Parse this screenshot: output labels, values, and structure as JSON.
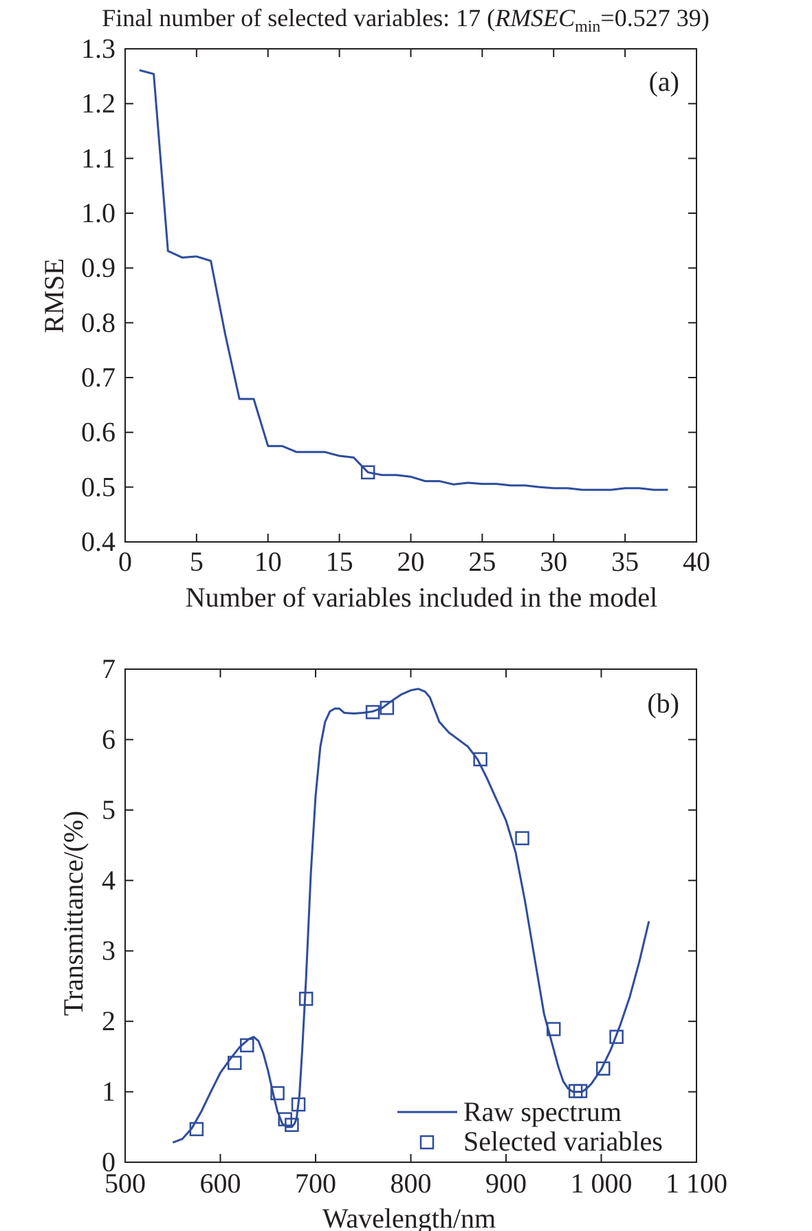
{
  "figure": {
    "title_prefix": "Final number of selected variables: 17 (",
    "title_symbol": "RMSEC",
    "title_subscript": "min",
    "title_suffix": "=0.527 39)"
  },
  "colors": {
    "series": "#2e4d9c",
    "axis": "#231f20",
    "text": "#231f20"
  },
  "chart_data": [
    {
      "type": "line",
      "panel_label": "(a)",
      "xlabel": "Number of variables included in the model",
      "ylabel": "RMSE",
      "xlim": [
        0,
        40
      ],
      "ylim": [
        0.4,
        1.3
      ],
      "xticks": [
        0,
        5,
        10,
        15,
        20,
        25,
        30,
        35,
        40
      ],
      "xtick_labels": [
        "0",
        "5",
        "10",
        "15",
        "20",
        "25",
        "30",
        "35",
        "40"
      ],
      "yticks": [
        0.4,
        0.5,
        0.6,
        0.7,
        0.8,
        0.9,
        1.0,
        1.1,
        1.2,
        1.3
      ],
      "ytick_labels": [
        "0.4",
        "0.5",
        "0.6",
        "0.7",
        "0.8",
        "0.9",
        "1.0",
        "1.1",
        "1.2",
        "1.3"
      ],
      "series": [
        {
          "name": "RMSE",
          "x": [
            1,
            2,
            3,
            4,
            5,
            6,
            7,
            8,
            9,
            10,
            11,
            12,
            13,
            14,
            15,
            16,
            17,
            18,
            19,
            20,
            21,
            22,
            23,
            24,
            25,
            26,
            27,
            28,
            29,
            30,
            31,
            32,
            33,
            34,
            35,
            36,
            37,
            38
          ],
          "y": [
            1.261,
            1.254,
            0.931,
            0.919,
            0.921,
            0.913,
            0.78,
            0.661,
            0.661,
            0.575,
            0.575,
            0.564,
            0.564,
            0.564,
            0.557,
            0.554,
            0.527,
            0.522,
            0.522,
            0.519,
            0.511,
            0.511,
            0.505,
            0.508,
            0.506,
            0.506,
            0.503,
            0.503,
            0.5,
            0.498,
            0.498,
            0.495,
            0.495,
            0.495,
            0.498,
            0.498,
            0.495,
            0.495
          ]
        }
      ],
      "highlight": {
        "x": 17,
        "y": 0.527
      }
    },
    {
      "type": "line",
      "panel_label": "(b)",
      "xlabel": "Wavelength/nm",
      "ylabel": "Transmittance/(%)",
      "xlim": [
        500,
        1100
      ],
      "ylim": [
        0,
        7
      ],
      "xticks": [
        500,
        600,
        700,
        800,
        900,
        1000,
        1100
      ],
      "xtick_labels": [
        "500",
        "600",
        "700",
        "800",
        "900",
        "1 000",
        "1 100"
      ],
      "yticks": [
        0,
        1,
        2,
        3,
        4,
        5,
        6,
        7
      ],
      "ytick_labels": [
        "0",
        "1",
        "2",
        "3",
        "4",
        "5",
        "6",
        "7"
      ],
      "legend": {
        "position": "bottom-right",
        "line_label": "Raw spectrum",
        "marker_label": "Selected variables"
      },
      "series": [
        {
          "name": "Raw spectrum",
          "x": [
            550,
            560,
            570,
            580,
            590,
            600,
            610,
            620,
            630,
            635,
            640,
            645,
            650,
            655,
            660,
            665,
            670,
            675,
            678,
            680,
            683,
            686,
            690,
            695,
            700,
            705,
            710,
            715,
            720,
            725,
            730,
            740,
            750,
            760,
            770,
            780,
            790,
            800,
            808,
            815,
            820,
            830,
            840,
            850,
            860,
            870,
            880,
            890,
            900,
            910,
            920,
            930,
            940,
            950,
            955,
            960,
            965,
            970,
            975,
            980,
            985,
            990,
            1000,
            1010,
            1020,
            1030,
            1040,
            1050
          ],
          "y": [
            0.28,
            0.33,
            0.48,
            0.72,
            1.0,
            1.27,
            1.46,
            1.63,
            1.75,
            1.78,
            1.72,
            1.55,
            1.3,
            1.0,
            0.72,
            0.55,
            0.5,
            0.5,
            0.55,
            0.62,
            0.95,
            1.6,
            2.6,
            4.1,
            5.2,
            5.9,
            6.25,
            6.4,
            6.44,
            6.44,
            6.38,
            6.37,
            6.38,
            6.4,
            6.45,
            6.55,
            6.64,
            6.7,
            6.72,
            6.68,
            6.6,
            6.25,
            6.1,
            6.0,
            5.9,
            5.72,
            5.45,
            5.15,
            4.85,
            4.4,
            3.7,
            2.9,
            2.1,
            1.6,
            1.35,
            1.15,
            1.05,
            1.0,
            1.0,
            1.0,
            1.05,
            1.12,
            1.32,
            1.6,
            1.95,
            2.35,
            2.85,
            3.42
          ]
        },
        {
          "name": "Selected variables",
          "x": [
            575,
            615,
            628,
            660,
            668,
            675,
            682,
            690,
            760,
            775,
            873,
            917,
            950,
            973,
            978,
            1002,
            1016
          ],
          "y": [
            0.47,
            1.41,
            1.66,
            0.98,
            0.61,
            0.53,
            0.82,
            2.32,
            6.39,
            6.45,
            5.72,
            4.6,
            1.89,
            1.01,
            1.01,
            1.33,
            1.78
          ]
        }
      ]
    }
  ]
}
